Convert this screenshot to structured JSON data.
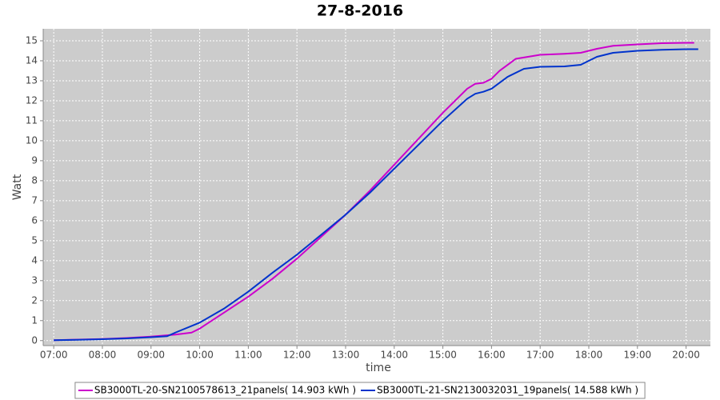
{
  "chart_data": {
    "type": "line",
    "title": "27-8-2016",
    "x_label": "time",
    "y_label": "Watt",
    "xlim": [
      407,
      1230
    ],
    "ylim": [
      -0.25,
      15.6
    ],
    "grid": true,
    "legend": "bottom",
    "xticks": [
      {
        "value": 420,
        "label": "07:00"
      },
      {
        "value": 480,
        "label": "08:00"
      },
      {
        "value": 540,
        "label": "09:00"
      },
      {
        "value": 600,
        "label": "10:00"
      },
      {
        "value": 660,
        "label": "11:00"
      },
      {
        "value": 720,
        "label": "12:00"
      },
      {
        "value": 780,
        "label": "13:00"
      },
      {
        "value": 840,
        "label": "14:00"
      },
      {
        "value": 900,
        "label": "15:00"
      },
      {
        "value": 960,
        "label": "16:00"
      },
      {
        "value": 1020,
        "label": "17:00"
      },
      {
        "value": 1080,
        "label": "18:00"
      },
      {
        "value": 1140,
        "label": "19:00"
      },
      {
        "value": 1200,
        "label": "20:00"
      }
    ],
    "yticks": [
      0,
      1,
      2,
      3,
      4,
      5,
      6,
      7,
      8,
      9,
      10,
      11,
      12,
      13,
      14,
      15
    ],
    "series": [
      {
        "name": "SB3000TL-20-SN2100578613_21panels( 14.903 kWh )",
        "color": "#cc00cc",
        "x": [
          420,
          450,
          480,
          510,
          540,
          570,
          590,
          600,
          630,
          660,
          690,
          720,
          750,
          780,
          810,
          840,
          870,
          900,
          930,
          940,
          950,
          960,
          970,
          990,
          1020,
          1050,
          1070,
          1090,
          1110,
          1140,
          1170,
          1200,
          1210
        ],
        "values": [
          0.02,
          0.05,
          0.08,
          0.13,
          0.2,
          0.3,
          0.4,
          0.6,
          1.4,
          2.2,
          3.1,
          4.1,
          5.2,
          6.3,
          7.5,
          8.8,
          10.1,
          11.4,
          12.6,
          12.85,
          12.9,
          13.1,
          13.5,
          14.1,
          14.3,
          14.35,
          14.4,
          14.6,
          14.75,
          14.82,
          14.88,
          14.9,
          14.9
        ]
      },
      {
        "name": "SB3000TL-21-SN2130032031_19panels( 14.588 kWh )",
        "color": "#0033cc",
        "x": [
          420,
          450,
          480,
          510,
          540,
          560,
          570,
          600,
          630,
          660,
          690,
          720,
          750,
          780,
          810,
          840,
          870,
          900,
          930,
          940,
          950,
          960,
          980,
          1000,
          1020,
          1050,
          1070,
          1090,
          1110,
          1140,
          1170,
          1200,
          1215
        ],
        "values": [
          0.02,
          0.04,
          0.07,
          0.11,
          0.17,
          0.22,
          0.4,
          0.9,
          1.6,
          2.45,
          3.4,
          4.3,
          5.3,
          6.3,
          7.4,
          8.6,
          9.8,
          11.0,
          12.1,
          12.35,
          12.45,
          12.6,
          13.2,
          13.6,
          13.7,
          13.72,
          13.8,
          14.2,
          14.4,
          14.5,
          14.55,
          14.58,
          14.58
        ]
      }
    ]
  }
}
